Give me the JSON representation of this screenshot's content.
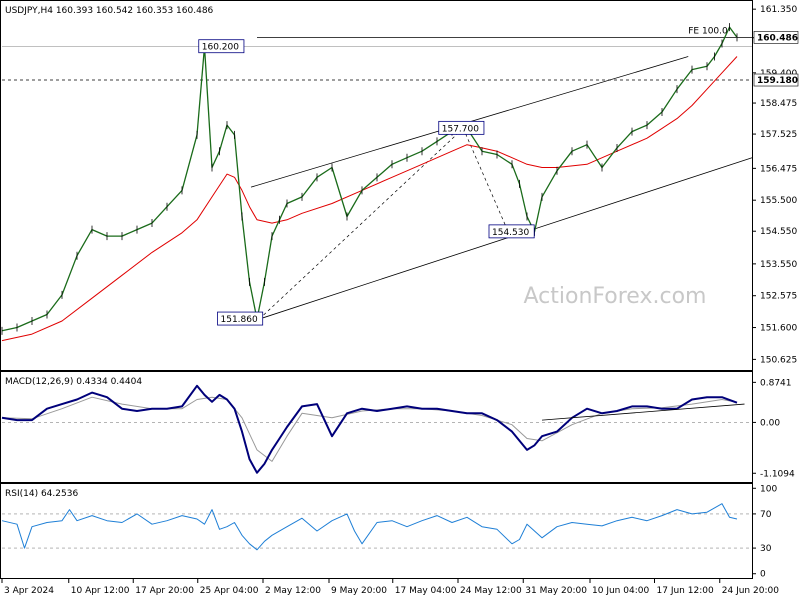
{
  "chart_data": [
    {
      "type": "line",
      "panel": "price",
      "title": "USDJPY,H4  160.393 160.542 160.353 160.486",
      "yticks": [
        "161.350",
        "160.475",
        "159.400",
        "158.475",
        "157.525",
        "156.475",
        "155.500",
        "154.550",
        "153.550",
        "152.575",
        "151.600",
        "150.625"
      ],
      "ytick_values": [
        161.35,
        160.475,
        159.4,
        158.475,
        157.525,
        156.475,
        155.5,
        154.55,
        153.55,
        152.575,
        151.6,
        150.625
      ],
      "ylim": [
        150.3,
        161.6
      ],
      "xlim": [
        0,
        100
      ],
      "xticks": [
        "3 Apr 2024",
        "10 Apr 12:00",
        "17 Apr 20:00",
        "25 Apr 04:00",
        "2 May 12:00",
        "9 May 20:00",
        "17 May 04:00",
        "24 May 12:00",
        "31 May 20:00",
        "10 Jun 04:00",
        "17 Jun 12:00",
        "24 Jun 20:00"
      ],
      "xtick_values": [
        0,
        8.9,
        17.5,
        26.1,
        34.8,
        43.6,
        52.1,
        60.8,
        69.5,
        78.4,
        87.0,
        95.7
      ],
      "price_series": {
        "name": "USDJPY",
        "x": [
          0,
          2,
          4,
          6,
          8,
          10,
          12,
          14,
          16,
          18,
          20,
          22,
          24,
          26,
          27,
          28,
          29,
          30,
          31,
          32,
          33,
          34,
          35,
          36,
          37,
          38,
          40,
          42,
          44,
          46,
          48,
          50,
          52,
          54,
          56,
          58,
          60,
          62,
          64,
          66,
          68,
          69,
          70,
          71,
          72,
          74,
          76,
          78,
          80,
          82,
          84,
          86,
          88,
          90,
          92,
          94,
          95,
          96,
          97,
          98
        ],
        "y": [
          151.5,
          151.6,
          151.8,
          152.0,
          152.6,
          153.8,
          154.6,
          154.4,
          154.4,
          154.6,
          154.8,
          155.3,
          155.8,
          157.5,
          160.2,
          156.5,
          157.0,
          157.8,
          157.5,
          155.0,
          153.0,
          151.86,
          153.0,
          154.4,
          154.9,
          155.4,
          155.6,
          156.2,
          156.5,
          155.0,
          155.8,
          156.2,
          156.6,
          156.8,
          157.0,
          157.3,
          157.6,
          157.7,
          157.0,
          156.9,
          156.6,
          156.0,
          155.0,
          154.53,
          155.6,
          156.4,
          157.0,
          157.2,
          156.5,
          157.1,
          157.6,
          157.8,
          158.2,
          158.9,
          159.5,
          159.6,
          159.9,
          160.3,
          160.8,
          160.486
        ]
      },
      "ma_series": {
        "name": "MA",
        "x": [
          0,
          4,
          8,
          12,
          16,
          20,
          24,
          26,
          28,
          30,
          31,
          32,
          33,
          34,
          36,
          38,
          40,
          44,
          48,
          52,
          56,
          60,
          62,
          64,
          66,
          68,
          70,
          72,
          74,
          78,
          82,
          86,
          88,
          90,
          92,
          94,
          96,
          98
        ],
        "y": [
          151.2,
          151.4,
          151.8,
          152.5,
          153.2,
          153.9,
          154.5,
          154.9,
          155.6,
          156.3,
          156.2,
          155.8,
          155.3,
          154.9,
          154.8,
          154.9,
          155.1,
          155.4,
          155.8,
          156.2,
          156.6,
          157.0,
          157.2,
          157.1,
          157.0,
          156.8,
          156.6,
          156.5,
          156.5,
          156.6,
          157.0,
          157.4,
          157.7,
          158.0,
          158.4,
          158.9,
          159.4,
          159.9
        ]
      },
      "channel_lines": [
        {
          "x": [
            33.2,
            91.5
          ],
          "y": [
            155.9,
            159.9
          ]
        },
        {
          "x": [
            34.3,
            100
          ],
          "y": [
            151.86,
            156.8
          ]
        }
      ],
      "dashed_lines": [
        {
          "x": [
            34.3,
            61.5
          ],
          "y": [
            151.86,
            157.7
          ]
        },
        {
          "x": [
            61.5,
            67.5
          ],
          "y": [
            157.7,
            154.53
          ]
        }
      ],
      "horizontal_lines": [
        {
          "y": 160.486,
          "x_start": 34,
          "style": "solid",
          "label": "160.486"
        },
        {
          "y": 159.18,
          "x_start": 0,
          "style": "dashed",
          "label": "159.180"
        },
        {
          "y": 160.2,
          "x_start": 0,
          "style": "thin",
          "label": ""
        }
      ],
      "annotations": [
        {
          "text": "160.200",
          "x": 26.5,
          "y": 160.2
        },
        {
          "text": "157.700",
          "x": 58.5,
          "y": 157.7
        },
        {
          "text": "154.530",
          "x": 65.2,
          "y": 154.53
        },
        {
          "text": "151.860",
          "x": 29.0,
          "y": 151.86
        },
        {
          "text": "FE 100.0",
          "x": 91.5,
          "y": 160.6
        }
      ],
      "watermark": "ActionForex.com"
    },
    {
      "type": "line",
      "panel": "macd",
      "title": "MACD(12,26,9) 0.4334 0.4404",
      "yticks": [
        "0.8741",
        "0.00",
        "-1.1094"
      ],
      "ytick_values": [
        0.8741,
        0.0,
        -1.1094
      ],
      "ylim": [
        -1.3,
        1.1
      ],
      "macd_series": {
        "name": "MACD",
        "x": [
          0,
          2,
          4,
          6,
          8,
          10,
          12,
          14,
          16,
          18,
          20,
          22,
          24,
          26,
          27,
          28,
          29,
          30,
          31,
          32,
          33,
          34,
          35,
          36,
          37,
          38,
          40,
          42,
          44,
          46,
          48,
          50,
          52,
          54,
          56,
          58,
          60,
          62,
          64,
          66,
          68,
          70,
          71,
          72,
          74,
          76,
          78,
          80,
          82,
          84,
          86,
          88,
          90,
          92,
          94,
          96,
          98
        ],
        "y": [
          0.1,
          0.05,
          0.05,
          0.3,
          0.4,
          0.5,
          0.65,
          0.55,
          0.3,
          0.25,
          0.3,
          0.3,
          0.35,
          0.8,
          0.6,
          0.45,
          0.6,
          0.5,
          0.3,
          -0.2,
          -0.8,
          -1.1,
          -0.9,
          -0.6,
          -0.35,
          -0.1,
          0.35,
          0.4,
          -0.3,
          0.2,
          0.3,
          0.25,
          0.3,
          0.35,
          0.3,
          0.3,
          0.25,
          0.2,
          0.2,
          0.05,
          -0.2,
          -0.6,
          -0.5,
          -0.3,
          -0.2,
          0.1,
          0.3,
          0.2,
          0.25,
          0.35,
          0.35,
          0.3,
          0.3,
          0.5,
          0.55,
          0.55,
          0.43
        ]
      },
      "signal_series": {
        "name": "Signal",
        "x": [
          0,
          4,
          8,
          12,
          16,
          20,
          24,
          26,
          28,
          30,
          32,
          34,
          36,
          38,
          40,
          44,
          48,
          52,
          56,
          60,
          64,
          68,
          70,
          72,
          76,
          80,
          84,
          88,
          92,
          96,
          98
        ],
        "y": [
          0.1,
          0.08,
          0.3,
          0.55,
          0.4,
          0.3,
          0.3,
          0.5,
          0.55,
          0.5,
          0.1,
          -0.6,
          -0.85,
          -0.3,
          0.2,
          0.1,
          0.25,
          0.3,
          0.3,
          0.25,
          0.15,
          -0.05,
          -0.35,
          -0.4,
          -0.05,
          0.2,
          0.3,
          0.32,
          0.4,
          0.5,
          0.44
        ]
      },
      "trend_line": {
        "x": [
          72,
          99
        ],
        "y": [
          0.05,
          0.4
        ]
      }
    },
    {
      "type": "line",
      "panel": "rsi",
      "title": "RSI(14) 64.2536",
      "yticks": [
        "100",
        "70",
        "30",
        "0"
      ],
      "ytick_values": [
        100,
        70,
        30,
        0
      ],
      "ylim": [
        -5,
        105
      ],
      "levels": [
        70,
        30
      ],
      "rsi_series": {
        "name": "RSI",
        "x": [
          0,
          2,
          3,
          4,
          6,
          8,
          9,
          10,
          12,
          14,
          16,
          18,
          20,
          22,
          24,
          26,
          27,
          28,
          29,
          30,
          31,
          32,
          33,
          34,
          35,
          36,
          38,
          40,
          42,
          44,
          46,
          47,
          48,
          50,
          52,
          54,
          56,
          58,
          60,
          62,
          64,
          66,
          68,
          69,
          70,
          72,
          74,
          76,
          78,
          80,
          82,
          84,
          86,
          88,
          90,
          92,
          94,
          96,
          97,
          98
        ],
        "y": [
          62,
          58,
          30,
          55,
          60,
          62,
          75,
          62,
          68,
          62,
          60,
          70,
          58,
          62,
          68,
          64,
          58,
          75,
          52,
          55,
          60,
          45,
          35,
          28,
          38,
          45,
          55,
          65,
          50,
          62,
          70,
          50,
          35,
          60,
          62,
          55,
          62,
          68,
          60,
          66,
          55,
          52,
          35,
          40,
          58,
          42,
          55,
          60,
          58,
          56,
          62,
          66,
          62,
          68,
          75,
          70,
          72,
          82,
          66,
          64
        ]
      }
    }
  ]
}
